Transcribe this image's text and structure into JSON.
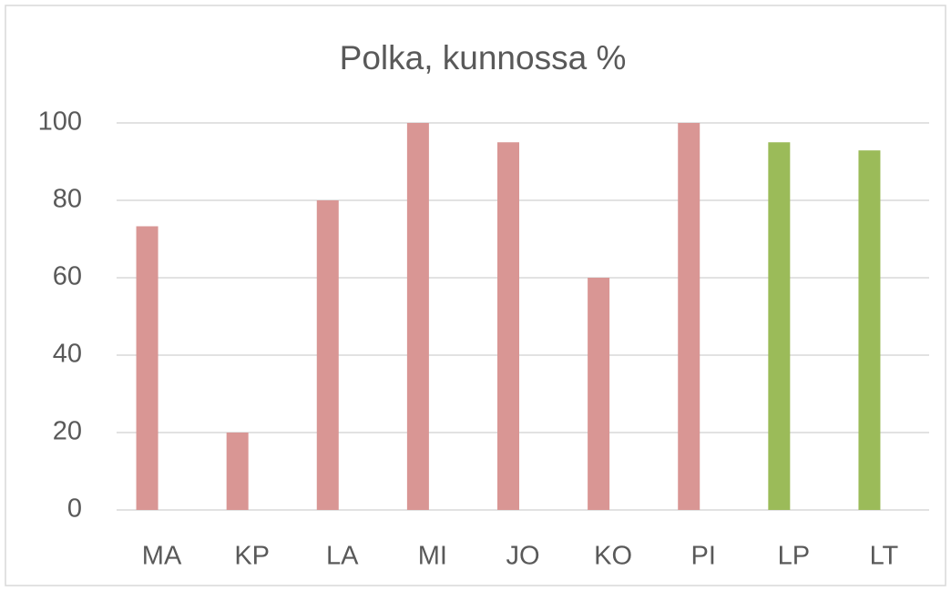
{
  "chart_data": {
    "type": "bar",
    "title": "Polka, kunnossa %",
    "categories": [
      "MA",
      "KP",
      "LA",
      "MI",
      "JO",
      "KO",
      "PI",
      "LP",
      "LT"
    ],
    "values": [
      73.3,
      20,
      80,
      100,
      95,
      60,
      100,
      95,
      92.9
    ],
    "colors": [
      "#d99694",
      "#d99694",
      "#d99694",
      "#d99694",
      "#d99694",
      "#d99694",
      "#d99694",
      "#9bbb59",
      "#9bbb59"
    ],
    "ylim": [
      0,
      100
    ],
    "yticks": [
      0,
      20,
      40,
      60,
      80,
      100
    ],
    "grid": true
  }
}
